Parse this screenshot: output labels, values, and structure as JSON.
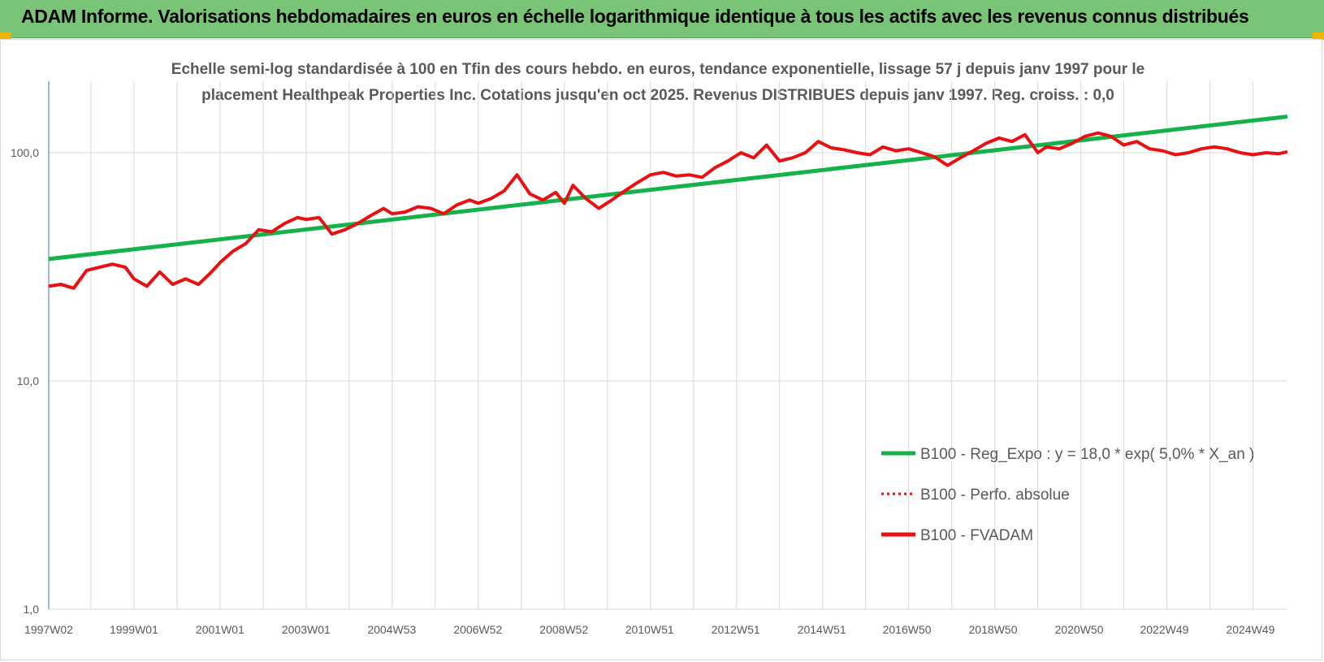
{
  "header": {
    "title": "ADAM Informe. Valorisations hebdomadaires en euros en échelle logarithmique identique à tous les actifs avec les revenus connus distribués"
  },
  "colors": {
    "header_bg": "#79c477",
    "regression": "#13b24a",
    "series": "#e81010",
    "grid": "#d9d9d9"
  },
  "chart_data": {
    "type": "line",
    "title_line1": "Echelle semi-log standardisée à 100 en Tfin des cours hebdo. en euros, tendance exponentielle, lissage 57 j depuis janv 1997 pour le",
    "title_line2": "placement Healthpeak Properties Inc. Cotations jusqu'en oct 2025. Revenus DISTRIBUES depuis janv 1997. Reg. croiss. : 0,0",
    "y_scale": "log",
    "ylim": [
      1,
      200
    ],
    "y_ticks": [
      {
        "value": 1,
        "label": "1,0"
      },
      {
        "value": 10,
        "label": "10,0"
      },
      {
        "value": 100,
        "label": "100,0"
      }
    ],
    "x_range": [
      1997.02,
      2025.8
    ],
    "x_ticks": [
      {
        "year": 1997.02,
        "label": "1997W02"
      },
      {
        "year": 1999.0,
        "label": "1999W01"
      },
      {
        "year": 2001.0,
        "label": "2001W01"
      },
      {
        "year": 2003.0,
        "label": "2003W01"
      },
      {
        "year": 2004.99,
        "label": "2004W53"
      },
      {
        "year": 2006.99,
        "label": "2006W52"
      },
      {
        "year": 2008.99,
        "label": "2008W52"
      },
      {
        "year": 2010.98,
        "label": "2010W51"
      },
      {
        "year": 2012.98,
        "label": "2012W51"
      },
      {
        "year": 2014.98,
        "label": "2014W51"
      },
      {
        "year": 2016.96,
        "label": "2016W50"
      },
      {
        "year": 2018.96,
        "label": "2018W50"
      },
      {
        "year": 2020.96,
        "label": "2020W50"
      },
      {
        "year": 2022.94,
        "label": "2022W49"
      },
      {
        "year": 2024.94,
        "label": "2024W49"
      }
    ],
    "grid": true,
    "legend_position": "right",
    "legend": [
      {
        "label": "B100 - Reg_Expo : y = 18,0 * exp( 5,0% *  X_an )",
        "style": "solid-green"
      },
      {
        "label": "B100 - Perfo. absolue",
        "style": "dotted-red"
      },
      {
        "label": "B100 - FVADAM",
        "style": "solid-red"
      }
    ],
    "series": [
      {
        "name": "B100 - Reg_Expo : y = 18,0 * exp( 5,0% *  X_an )",
        "x": [
          1997.02,
          2025.8
        ],
        "y": [
          34.2,
          144
        ]
      },
      {
        "name": "B100 - FVADAM",
        "x": [
          1997.02,
          1997.3,
          1997.6,
          1997.9,
          1998.2,
          1998.5,
          1998.8,
          1999.0,
          1999.3,
          1999.6,
          1999.9,
          2000.2,
          2000.5,
          2000.8,
          2001.0,
          2001.3,
          2001.6,
          2001.9,
          2002.2,
          2002.5,
          2002.8,
          2003.0,
          2003.3,
          2003.6,
          2003.9,
          2004.2,
          2004.5,
          2004.8,
          2005.0,
          2005.3,
          2005.6,
          2005.9,
          2006.2,
          2006.5,
          2006.8,
          2007.0,
          2007.3,
          2007.6,
          2007.9,
          2008.2,
          2008.5,
          2008.8,
          2009.0,
          2009.2,
          2009.5,
          2009.8,
          2010.1,
          2010.4,
          2010.7,
          2011.0,
          2011.3,
          2011.6,
          2011.9,
          2012.2,
          2012.5,
          2012.8,
          2013.1,
          2013.4,
          2013.7,
          2014.0,
          2014.3,
          2014.6,
          2014.9,
          2015.2,
          2015.5,
          2015.8,
          2016.1,
          2016.4,
          2016.7,
          2017.0,
          2017.3,
          2017.6,
          2017.9,
          2018.2,
          2018.5,
          2018.8,
          2019.1,
          2019.4,
          2019.7,
          2020.0,
          2020.2,
          2020.5,
          2020.8,
          2021.1,
          2021.4,
          2021.7,
          2022.0,
          2022.3,
          2022.6,
          2022.9,
          2023.2,
          2023.5,
          2023.8,
          2024.1,
          2024.4,
          2024.7,
          2025.0,
          2025.3,
          2025.6,
          2025.8
        ],
        "y": [
          26,
          26.5,
          25.5,
          30.5,
          31.5,
          32.5,
          31.5,
          28,
          26,
          30,
          26.5,
          28,
          26.5,
          30,
          33,
          37,
          40,
          46,
          45,
          49,
          52,
          51,
          52,
          44,
          46,
          49,
          53,
          57,
          54,
          55,
          58,
          57,
          54,
          59,
          62,
          60,
          63,
          68,
          80,
          66,
          62,
          67,
          60,
          72,
          63,
          57,
          62,
          68,
          74,
          80,
          82,
          79,
          80,
          78,
          86,
          92,
          100,
          95,
          108,
          92,
          95,
          100,
          112,
          105,
          103,
          100,
          98,
          106,
          102,
          104,
          100,
          96,
          88,
          95,
          102,
          110,
          116,
          112,
          120,
          100,
          106,
          104,
          110,
          118,
          122,
          118,
          108,
          112,
          104,
          102,
          98,
          100,
          104,
          106,
          104,
          100,
          98,
          100,
          99,
          101
        ]
      }
    ]
  }
}
